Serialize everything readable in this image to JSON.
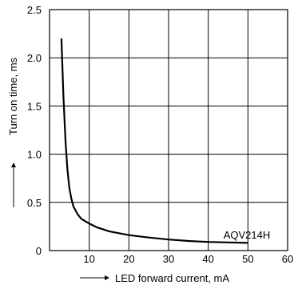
{
  "chart_data": {
    "type": "line",
    "title": "",
    "xlabel": "LED forward current, mA",
    "ylabel": "Turn on time, ms",
    "xlim": [
      0,
      60
    ],
    "ylim": [
      0,
      2.5
    ],
    "x_ticks": [
      "10",
      "20",
      "30",
      "40",
      "50",
      "60"
    ],
    "y_ticks": [
      "0",
      "0.5",
      "1.0",
      "1.5",
      "2.0",
      "2.5"
    ],
    "grid": true,
    "annotations": [
      "AQV214H"
    ],
    "series": [
      {
        "name": "AQV214H",
        "color": "#000000",
        "points": [
          [
            3,
            2.2
          ],
          [
            3.5,
            1.6
          ],
          [
            4,
            1.15
          ],
          [
            4.5,
            0.85
          ],
          [
            5,
            0.65
          ],
          [
            5.5,
            0.54
          ],
          [
            6,
            0.46
          ],
          [
            7,
            0.38
          ],
          [
            8,
            0.33
          ],
          [
            10,
            0.28
          ],
          [
            12,
            0.24
          ],
          [
            15,
            0.2
          ],
          [
            20,
            0.16
          ],
          [
            25,
            0.135
          ],
          [
            30,
            0.115
          ],
          [
            35,
            0.1
          ],
          [
            40,
            0.09
          ],
          [
            45,
            0.085
          ],
          [
            50,
            0.08
          ]
        ]
      }
    ]
  }
}
